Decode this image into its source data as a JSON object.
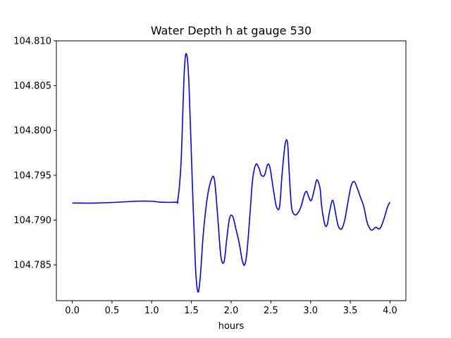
{
  "chart_data": {
    "type": "line",
    "title": "Water Depth h at gauge 530",
    "xlabel": "hours",
    "ylabel": "",
    "xlim": [
      -0.2,
      4.2
    ],
    "ylim": [
      104.781,
      104.81
    ],
    "xticks": [
      0.0,
      0.5,
      1.0,
      1.5,
      2.0,
      2.5,
      3.0,
      3.5,
      4.0
    ],
    "xtick_labels": [
      "0.0",
      "0.5",
      "1.0",
      "1.5",
      "2.0",
      "2.5",
      "3.0",
      "3.5",
      "4.0"
    ],
    "yticks": [
      104.785,
      104.79,
      104.795,
      104.8,
      104.805,
      104.81
    ],
    "ytick_labels": [
      "104.785",
      "104.790",
      "104.795",
      "104.800",
      "104.805",
      "104.810"
    ],
    "grid": false,
    "series": [
      {
        "color": "#0000ff",
        "x": [
          0.0,
          0.3,
          0.6,
          0.8,
          1.0,
          1.1,
          1.3,
          1.33,
          1.37,
          1.41,
          1.44,
          1.47,
          1.51,
          1.55,
          1.58,
          1.61,
          1.65,
          1.7,
          1.75,
          1.79,
          1.83,
          1.87,
          1.91,
          1.94,
          1.98,
          2.02,
          2.06,
          2.1,
          2.14,
          2.17,
          2.2,
          2.24,
          2.27,
          2.31,
          2.35,
          2.38,
          2.42,
          2.46,
          2.49,
          2.53,
          2.57,
          2.61,
          2.64,
          2.68,
          2.71,
          2.73,
          2.76,
          2.8,
          2.84,
          2.88,
          2.92,
          2.95,
          2.98,
          3.01,
          3.05,
          3.08,
          3.12,
          3.14,
          3.18,
          3.21,
          3.24,
          3.28,
          3.32,
          3.35,
          3.39,
          3.43,
          3.47,
          3.51,
          3.55,
          3.59,
          3.63,
          3.67,
          3.71,
          3.75,
          3.78,
          3.82,
          3.86,
          3.89,
          3.93,
          3.97,
          4.0
        ],
        "y": [
          104.7919,
          104.7919,
          104.792,
          104.7921,
          104.7921,
          104.792,
          104.792,
          104.7923,
          104.7965,
          104.8065,
          104.8085,
          104.805,
          104.7945,
          104.785,
          104.782,
          104.7835,
          104.7885,
          104.7925,
          104.7945,
          104.7945,
          104.7905,
          104.786,
          104.7853,
          104.7875,
          104.7902,
          104.7904,
          104.789,
          104.7875,
          104.7855,
          104.785,
          104.7865,
          104.791,
          104.7945,
          104.7962,
          104.7958,
          104.795,
          104.795,
          104.7962,
          104.7958,
          104.7935,
          104.7915,
          104.7915,
          104.795,
          104.7985,
          104.7986,
          104.7955,
          104.7915,
          104.7906,
          104.7908,
          104.7915,
          104.7928,
          104.7932,
          104.7925,
          104.7922,
          104.7935,
          104.7945,
          104.7935,
          104.7915,
          104.7895,
          104.7895,
          104.791,
          104.7922,
          104.7905,
          104.7893,
          104.789,
          104.79,
          104.792,
          104.7938,
          104.7943,
          104.7935,
          104.7925,
          104.7915,
          104.7898,
          104.789,
          104.7889,
          104.7892,
          104.789,
          104.7893,
          104.7903,
          104.7915,
          104.792
        ]
      }
    ]
  }
}
